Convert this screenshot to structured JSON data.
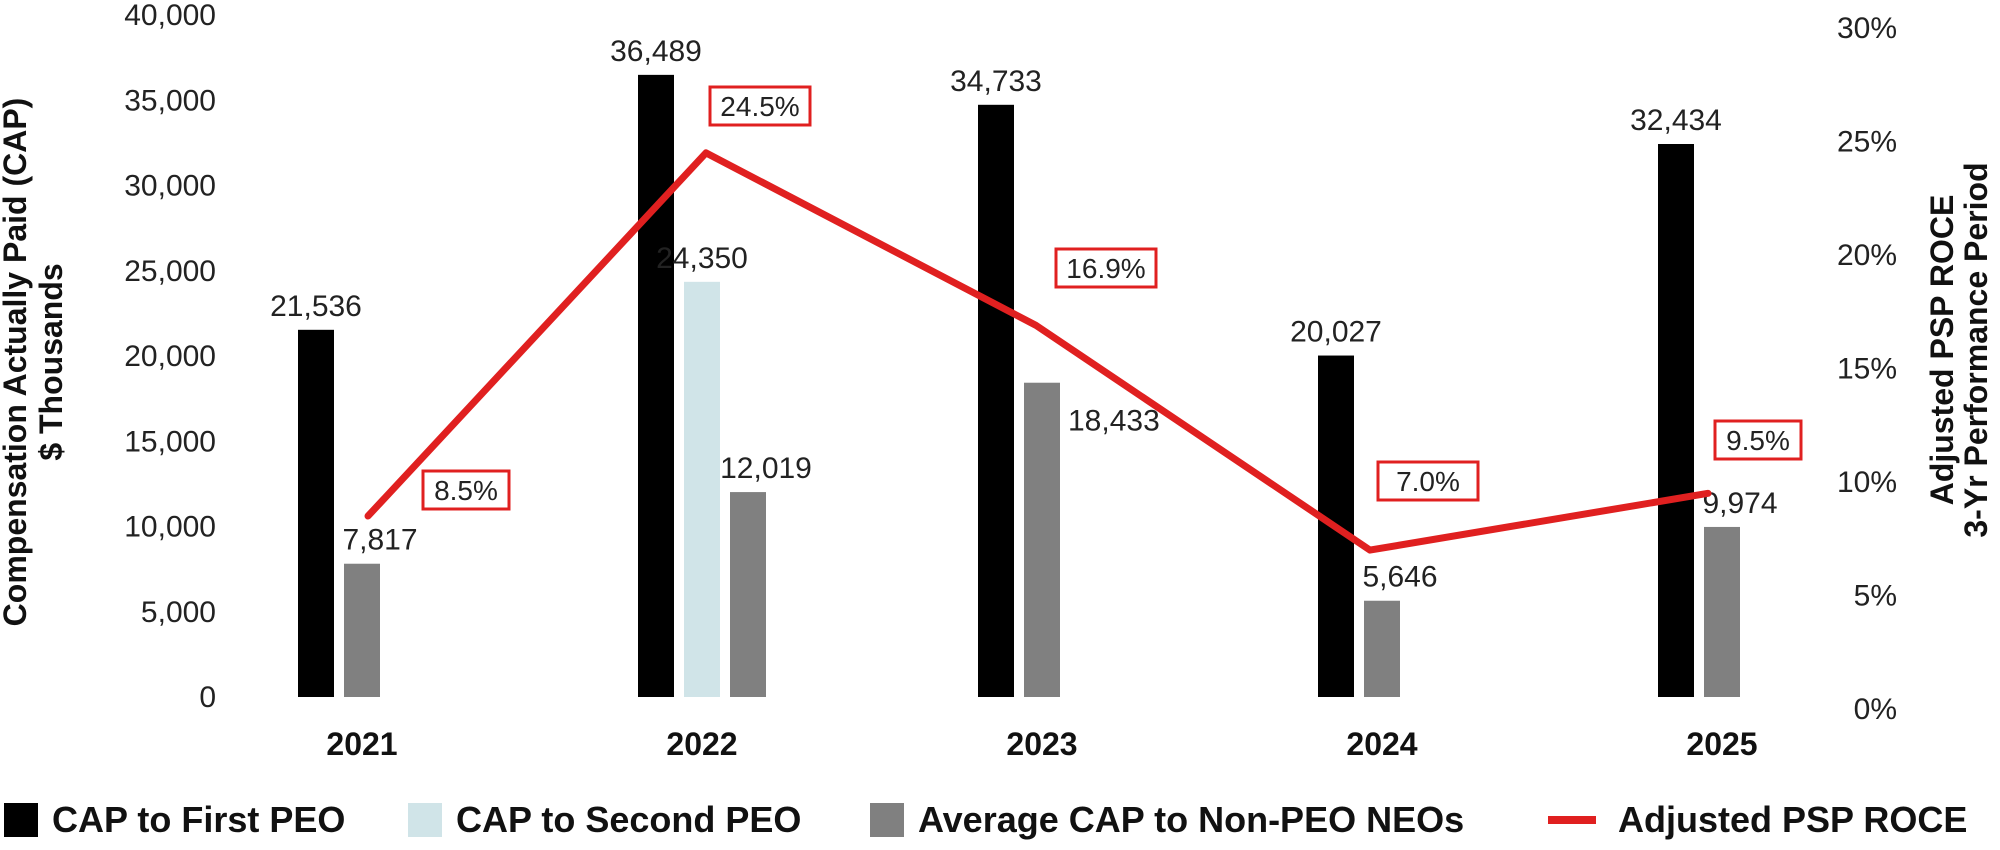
{
  "chart_data": {
    "type": "bar",
    "categories": [
      "2021",
      "2022",
      "2023",
      "2024",
      "2025"
    ],
    "series": [
      {
        "name": "CAP to First PEO",
        "color": "#000000",
        "values": [
          21536,
          36489,
          34733,
          20027,
          32434
        ],
        "labels": [
          "21,536",
          "36,489",
          "34,733",
          "20,027",
          "32,434"
        ]
      },
      {
        "name": "CAP to Second PEO",
        "color": "#d0e4e8",
        "values": [
          null,
          24350,
          null,
          null,
          null
        ],
        "labels": [
          "",
          "24,350",
          "",
          "",
          ""
        ]
      },
      {
        "name": "Average CAP to Non-PEO NEOs",
        "color": "#808080",
        "values": [
          7817,
          12019,
          18433,
          5646,
          9974
        ],
        "labels": [
          "7,817",
          "12,019",
          "18,433",
          "5,646",
          "9,974"
        ]
      }
    ],
    "line_series": {
      "name": "Adjusted PSP ROCE",
      "color": "#e02020",
      "values": [
        8.5,
        24.5,
        16.9,
        7.0,
        9.5
      ],
      "labels": [
        "8.5%",
        "24.5%",
        "16.9%",
        "7.0%",
        "9.5%"
      ],
      "axis": "right"
    },
    "left_axis": {
      "title_line1": "Compensation Actually Paid (CAP)",
      "title_line2": "$ Thousands",
      "ylim": [
        0,
        40000
      ],
      "ticks": [
        "0",
        "5,000",
        "10,000",
        "15,000",
        "20,000",
        "25,000",
        "30,000",
        "35,000",
        "40,000"
      ]
    },
    "right_axis": {
      "title_line1": "Adjusted PSP ROCE",
      "title_line2": "3-Yr Performance Period",
      "ylim": [
        0,
        30
      ],
      "ticks": [
        "0%",
        "5%",
        "10%",
        "15%",
        "20%",
        "25%",
        "30%"
      ]
    },
    "legend": [
      {
        "label": "CAP to First PEO",
        "color": "#000000",
        "kind": "box"
      },
      {
        "label": "CAP to Second PEO",
        "color": "#d0e4e8",
        "kind": "box"
      },
      {
        "label": "Average CAP to Non-PEO NEOs",
        "color": "#808080",
        "kind": "box"
      },
      {
        "label": "Adjusted PSP ROCE",
        "color": "#e02020",
        "kind": "line"
      }
    ],
    "legend_position": "bottom"
  }
}
